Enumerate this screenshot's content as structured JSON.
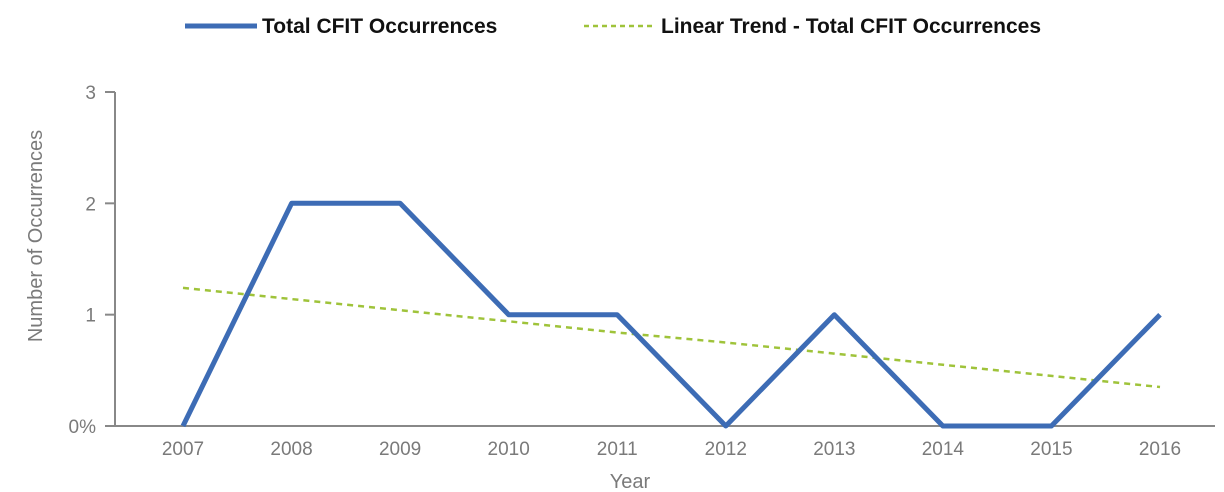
{
  "chart_data": {
    "type": "line",
    "x": [
      "2007",
      "2008",
      "2009",
      "2010",
      "2011",
      "2012",
      "2013",
      "2014",
      "2015",
      "2016"
    ],
    "series": [
      {
        "name": "Total CFIT Occurrences",
        "values": [
          0,
          2,
          2,
          1,
          1,
          0,
          1,
          0,
          0,
          1
        ],
        "color": "#3d6cb5",
        "style": "solid"
      },
      {
        "name": "Linear Trend - Total CFIT Occurrences",
        "values": [
          1.24,
          1.14,
          1.04,
          0.94,
          0.84,
          0.75,
          0.65,
          0.55,
          0.45,
          0.35
        ],
        "color": "#9fc33a",
        "style": "dashed"
      }
    ],
    "xlabel": "Year",
    "ylabel": "Number of Occurrences",
    "ylim": [
      0,
      3
    ],
    "yticks": [
      0,
      1,
      2,
      3
    ],
    "ytick_labels": [
      "0%",
      "1",
      "2",
      "3"
    ],
    "legend_position": "top-center",
    "grid": false
  }
}
